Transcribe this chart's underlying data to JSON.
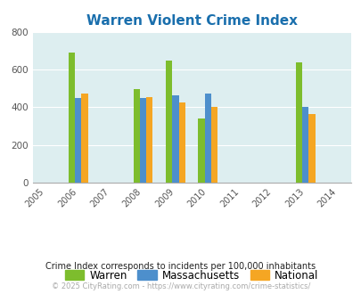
{
  "title": "Warren Violent Crime Index",
  "title_color": "#1a6fad",
  "years": [
    2005,
    2006,
    2007,
    2008,
    2009,
    2010,
    2011,
    2012,
    2013,
    2014
  ],
  "data_years": [
    2006,
    2008,
    2009,
    2010,
    2013
  ],
  "warren": [
    690,
    497,
    648,
    340,
    638
  ],
  "massachusetts": [
    448,
    450,
    462,
    472,
    400
  ],
  "national": [
    475,
    455,
    428,
    400,
    365
  ],
  "warren_color": "#7dbd2d",
  "mass_color": "#4d8fcc",
  "national_color": "#f5a623",
  "bg_color": "#ddeef0",
  "ylim": [
    0,
    800
  ],
  "yticks": [
    0,
    200,
    400,
    600,
    800
  ],
  "bar_width": 0.2,
  "legend_labels": [
    "Warren",
    "Massachusetts",
    "National"
  ],
  "footnote1": "Crime Index corresponds to incidents per 100,000 inhabitants",
  "footnote2": "© 2025 CityRating.com - https://www.cityrating.com/crime-statistics/",
  "footnote1_color": "#222222",
  "footnote2_color": "#aaaaaa"
}
